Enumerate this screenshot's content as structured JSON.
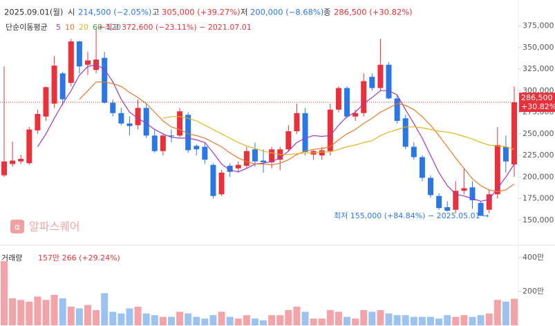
{
  "header": {
    "date": "2025.09.01(월)",
    "open_label": "시",
    "open": "214,500 (−2.05%)",
    "high_label": "고",
    "high": "305,000 (+39.27%)",
    "low_label": "저",
    "low": "200,000 (−8.68%)",
    "close_label": "종",
    "close": "286,500 (+30.82%)"
  },
  "watermark": "알파스퀘어",
  "chart_data": {
    "type": "candlestick",
    "up_color": "#e8313b",
    "down_color": "#2b78e4",
    "open": [
      202000,
      215000,
      218000,
      216000,
      254000,
      270000,
      285000,
      320000,
      309000,
      357000,
      330000,
      324000,
      338000,
      286000,
      274000,
      262000,
      260000,
      280000,
      248000,
      230000,
      248000,
      248000,
      272000,
      236000,
      235000,
      214000,
      180000,
      213000,
      210000,
      213000,
      232000,
      219000,
      217000,
      220000,
      232000,
      253000,
      274000,
      226000,
      225000,
      230000,
      278000,
      303000,
      270000,
      274000,
      316000,
      303000,
      330000,
      291000,
      268000,
      235000,
      223000,
      199000,
      178000,
      165000,
      162000,
      184000,
      188000,
      170000,
      162000,
      180000,
      235000,
      214500
    ],
    "high": [
      328000,
      241000,
      226000,
      258000,
      278000,
      305000,
      340000,
      322000,
      360000,
      358000,
      345000,
      372600,
      345000,
      290000,
      280000,
      270000,
      290000,
      285000,
      255000,
      250000,
      255000,
      280000,
      275000,
      238000,
      240000,
      216000,
      208000,
      216000,
      218000,
      235000,
      240000,
      232000,
      235000,
      235000,
      260000,
      285000,
      280000,
      232000,
      235000,
      285000,
      305000,
      305000,
      278000,
      320000,
      320000,
      360000,
      333000,
      295000,
      272000,
      240000,
      225000,
      202000,
      181000,
      172000,
      195000,
      210000,
      195000,
      172000,
      185000,
      258000,
      248000,
      305000
    ],
    "low": [
      200000,
      212000,
      215000,
      214000,
      250000,
      265000,
      280000,
      283000,
      305000,
      320000,
      318000,
      320000,
      285000,
      270000,
      260000,
      248000,
      255000,
      245000,
      228000,
      225000,
      240000,
      246000,
      228000,
      225000,
      215000,
      175000,
      178000,
      200000,
      205000,
      210000,
      212000,
      205000,
      210000,
      208000,
      230000,
      250000,
      225000,
      220000,
      220000,
      225000,
      275000,
      268000,
      265000,
      270000,
      300000,
      300000,
      290000,
      262000,
      232000,
      220000,
      195000,
      176000,
      162000,
      160000,
      158000,
      180000,
      163000,
      155000,
      158000,
      175000,
      205000,
      200000
    ],
    "close": [
      218000,
      219000,
      221000,
      255000,
      273000,
      304000,
      329000,
      290000,
      357000,
      328000,
      335000,
      336000,
      286000,
      274000,
      262000,
      259000,
      280000,
      248000,
      230000,
      248000,
      247000,
      276000,
      231000,
      232000,
      220000,
      178000,
      205000,
      206000,
      214000,
      230000,
      218000,
      217000,
      232000,
      232000,
      253000,
      274000,
      229000,
      230000,
      231000,
      278000,
      303000,
      270000,
      274000,
      311000,
      303000,
      330000,
      291000,
      265000,
      235000,
      223000,
      199000,
      179000,
      164000,
      161000,
      184000,
      187000,
      173000,
      155000,
      180000,
      237000,
      218000,
      286500
    ],
    "ylim": [
      125000,
      389000
    ],
    "yticks": [
      {
        "value": 150000,
        "label": "150,000"
      },
      {
        "value": 175000,
        "label": "175,000"
      },
      {
        "value": 200000,
        "label": "200,000"
      },
      {
        "value": 225000,
        "label": "225,000"
      },
      {
        "value": 250000,
        "label": "250,000"
      },
      {
        "value": 275000,
        "label": "275,000"
      },
      {
        "value": 300000,
        "label": "300,000"
      },
      {
        "value": 325000,
        "label": "325,000"
      },
      {
        "value": 350000,
        "label": "350,000"
      },
      {
        "value": 375000,
        "label": "375,000"
      }
    ],
    "price_tag": {
      "value": 286500,
      "label": "286,500",
      "change": "+30.82%"
    },
    "moving_averages": {
      "title": "단순이동평균",
      "series": [
        {
          "name": "5",
          "color": "#9b37c9",
          "values": [
            null,
            null,
            null,
            null,
            235000,
            250000,
            268000,
            285000,
            300000,
            318000,
            328000,
            330000,
            325000,
            310000,
            290000,
            275000,
            268000,
            262000,
            255000,
            250000,
            246000,
            245000,
            245000,
            243000,
            240000,
            228000,
            215000,
            208000,
            206000,
            210000,
            215000,
            216000,
            218000,
            222000,
            230000,
            240000,
            245000,
            248000,
            247000,
            248000,
            260000,
            270000,
            275000,
            285000,
            292000,
            300000,
            300000,
            295000,
            278000,
            262000,
            245000,
            225000,
            205000,
            190000,
            180000,
            178000,
            175000,
            172000,
            174000,
            187000,
            200000,
            215000
          ]
        },
        {
          "name": "10",
          "color": "#e8782a",
          "values": [
            null,
            null,
            null,
            null,
            null,
            null,
            null,
            null,
            null,
            290000,
            300000,
            310000,
            310000,
            308000,
            305000,
            298000,
            292000,
            285000,
            275000,
            265000,
            258000,
            255000,
            250000,
            248000,
            245000,
            240000,
            235000,
            228000,
            222000,
            218000,
            215000,
            215000,
            214000,
            216000,
            220000,
            226000,
            230000,
            232000,
            233000,
            235000,
            243000,
            250000,
            255000,
            262000,
            268000,
            275000,
            280000,
            285000,
            283000,
            278000,
            270000,
            260000,
            248000,
            235000,
            222000,
            210000,
            198000,
            190000,
            185000,
            183000,
            185000,
            192000
          ]
        },
        {
          "name": "20",
          "color": "#e0b51c",
          "values": [
            null,
            null,
            null,
            null,
            null,
            null,
            null,
            null,
            null,
            null,
            null,
            null,
            null,
            null,
            null,
            null,
            null,
            null,
            null,
            268000,
            270000,
            270000,
            268000,
            265000,
            260000,
            255000,
            250000,
            245000,
            240000,
            236000,
            233000,
            230000,
            228000,
            226000,
            226000,
            227000,
            228000,
            228000,
            229000,
            229000,
            232000,
            235000,
            237000,
            240000,
            242000,
            248000,
            252000,
            255000,
            258000,
            258000,
            257000,
            255000,
            253000,
            252000,
            250000,
            247000,
            244000,
            240000,
            237000,
            236000,
            235000,
            232000
          ]
        },
        {
          "name": "60",
          "color": "#3aa84a"
        },
        {
          "name": "120",
          "color": "#2a9fb0"
        }
      ]
    },
    "annotations": [
      {
        "text": "←최고 372,600 (−23.11%) − 2021.07.01",
        "color": "#e8313b"
      },
      {
        "text": "최저 155,000 (+84.84%) − 2025.05.01 →",
        "color": "#2b78e4"
      }
    ],
    "volume": {
      "title": "거래량",
      "label": "157만 266 (+29.24%)",
      "up_color": "#f4a4a9",
      "down_color": "#9cc3f0",
      "values": [
        3800000,
        1600000,
        1500000,
        1400000,
        1700000,
        1500000,
        1800000,
        1600000,
        1100000,
        1000000,
        1200000,
        900000,
        1900000,
        800000,
        700000,
        1000000,
        1100000,
        700000,
        600000,
        500000,
        500000,
        800000,
        700000,
        500000,
        400000,
        600000,
        800000,
        500000,
        400000,
        600000,
        400000,
        300000,
        600000,
        600000,
        900000,
        1100000,
        800000,
        400000,
        400000,
        900000,
        800000,
        500000,
        400000,
        900000,
        800000,
        900000,
        700000,
        600000,
        600000,
        500000,
        500000,
        500000,
        400000,
        600000,
        500000,
        600000,
        500000,
        600000,
        700000,
        1500000,
        1400000,
        1570266
      ],
      "ylim": [
        0,
        4450000
      ],
      "yticks": [
        {
          "value": 2000000,
          "label": "200만"
        },
        {
          "value": 4000000,
          "label": "400만"
        }
      ]
    }
  }
}
